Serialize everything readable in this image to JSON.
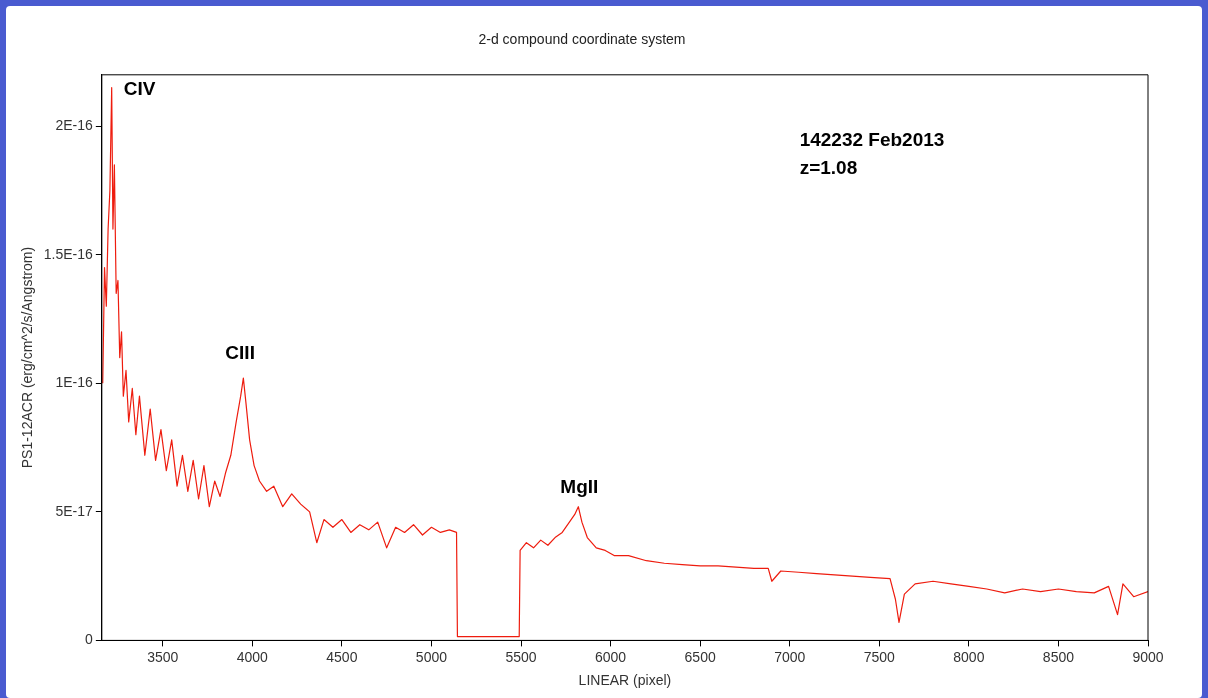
{
  "chart_data": {
    "type": "line",
    "title": "2-d compound coordinate system",
    "xlabel": "LINEAR (pixel)",
    "ylabel": "PS1-12ACR (erg/cm^2/s/Angstrom)",
    "xlim": [
      3160,
      9000
    ],
    "xticks": [
      3500,
      4000,
      4500,
      5000,
      5500,
      6000,
      6500,
      7000,
      7500,
      8000,
      8500,
      9000
    ],
    "ylim": [
      0,
      2.2e-16
    ],
    "yticks": [
      0,
      {
        "value": 5e-17,
        "label": "5E-17"
      },
      {
        "value": 1e-16,
        "label": "1E-16"
      },
      {
        "value": 1.5e-16,
        "label": "1.5E-16"
      },
      {
        "value": 2e-16,
        "label": "2E-16"
      }
    ],
    "grid": false,
    "legend": false,
    "marker": "none",
    "line_style": "solid",
    "annotations": [
      {
        "text": "CIV",
        "x": 3215,
        "y": 2.1e-16
      },
      {
        "text": "CIII",
        "x": 3950,
        "y": 1.03e-16
      },
      {
        "text": "MgII",
        "x": 5820,
        "y": 5.1e-17
      },
      "142232 Feb2013",
      "z=1.08"
    ],
    "series": [
      {
        "color": "#ee1c0e",
        "x": [
          3165,
          3175,
          3185,
          3195,
          3205,
          3215,
          3222,
          3230,
          3240,
          3250,
          3260,
          3270,
          3280,
          3295,
          3310,
          3330,
          3350,
          3370,
          3400,
          3430,
          3460,
          3490,
          3520,
          3550,
          3580,
          3610,
          3640,
          3670,
          3700,
          3730,
          3760,
          3790,
          3820,
          3850,
          3880,
          3910,
          3935,
          3950,
          3965,
          3985,
          4010,
          4040,
          4080,
          4120,
          4170,
          4220,
          4270,
          4320,
          4360,
          4400,
          4450,
          4500,
          4550,
          4600,
          4650,
          4700,
          4750,
          4800,
          4850,
          4900,
          4950,
          5000,
          5050,
          5100,
          5140,
          5145,
          5490,
          5495,
          5530,
          5570,
          5610,
          5650,
          5690,
          5730,
          5770,
          5800,
          5820,
          5840,
          5870,
          5920,
          5970,
          6020,
          6100,
          6200,
          6300,
          6400,
          6500,
          6600,
          6700,
          6800,
          6880,
          6900,
          6950,
          7050,
          7150,
          7250,
          7350,
          7450,
          7560,
          7590,
          7610,
          7640,
          7700,
          7800,
          7900,
          8000,
          8100,
          8200,
          8300,
          8400,
          8500,
          8600,
          8700,
          8780,
          8830,
          8860,
          8920,
          9000
        ],
        "values": [
          1e-16,
          1.45e-16,
          1.3e-16,
          1.6e-16,
          1.75e-16,
          2.15e-16,
          1.6e-16,
          1.85e-16,
          1.35e-16,
          1.4e-16,
          1.1e-16,
          1.2e-16,
          9.5e-17,
          1.05e-16,
          8.5e-17,
          9.8e-17,
          8e-17,
          9.5e-17,
          7.2e-17,
          9e-17,
          7e-17,
          8.2e-17,
          6.6e-17,
          7.8e-17,
          6e-17,
          7.2e-17,
          5.8e-17,
          7e-17,
          5.5e-17,
          6.8e-17,
          5.2e-17,
          6.2e-17,
          5.6e-17,
          6.5e-17,
          7.2e-17,
          8.5e-17,
          9.5e-17,
          1.02e-16,
          9.2e-17,
          7.8e-17,
          6.8e-17,
          6.2e-17,
          5.8e-17,
          6e-17,
          5.2e-17,
          5.7e-17,
          5.3e-17,
          5e-17,
          3.8e-17,
          4.7e-17,
          4.4e-17,
          4.7e-17,
          4.2e-17,
          4.5e-17,
          4.3e-17,
          4.6e-17,
          3.6e-17,
          4.4e-17,
          4.2e-17,
          4.5e-17,
          4.1e-17,
          4.4e-17,
          4.2e-17,
          4.3e-17,
          4.2e-17,
          1.5e-18,
          1.5e-18,
          3.5e-17,
          3.8e-17,
          3.6e-17,
          3.9e-17,
          3.7e-17,
          4e-17,
          4.2e-17,
          4.6e-17,
          4.9e-17,
          5.2e-17,
          4.6e-17,
          4e-17,
          3.6e-17,
          3.5e-17,
          3.3e-17,
          3.3e-17,
          3.1e-17,
          3e-17,
          2.95e-17,
          2.9e-17,
          2.9e-17,
          2.85e-17,
          2.8e-17,
          2.8e-17,
          2.3e-17,
          2.7e-17,
          2.65e-17,
          2.6e-17,
          2.55e-17,
          2.5e-17,
          2.45e-17,
          2.4e-17,
          1.6e-17,
          7e-18,
          1.8e-17,
          2.2e-17,
          2.3e-17,
          2.2e-17,
          2.1e-17,
          2e-17,
          1.85e-17,
          2e-17,
          1.9e-17,
          2e-17,
          1.9e-17,
          1.85e-17,
          2.1e-17,
          1e-17,
          2.2e-17,
          1.7e-17,
          1.9e-17
        ]
      }
    ]
  }
}
